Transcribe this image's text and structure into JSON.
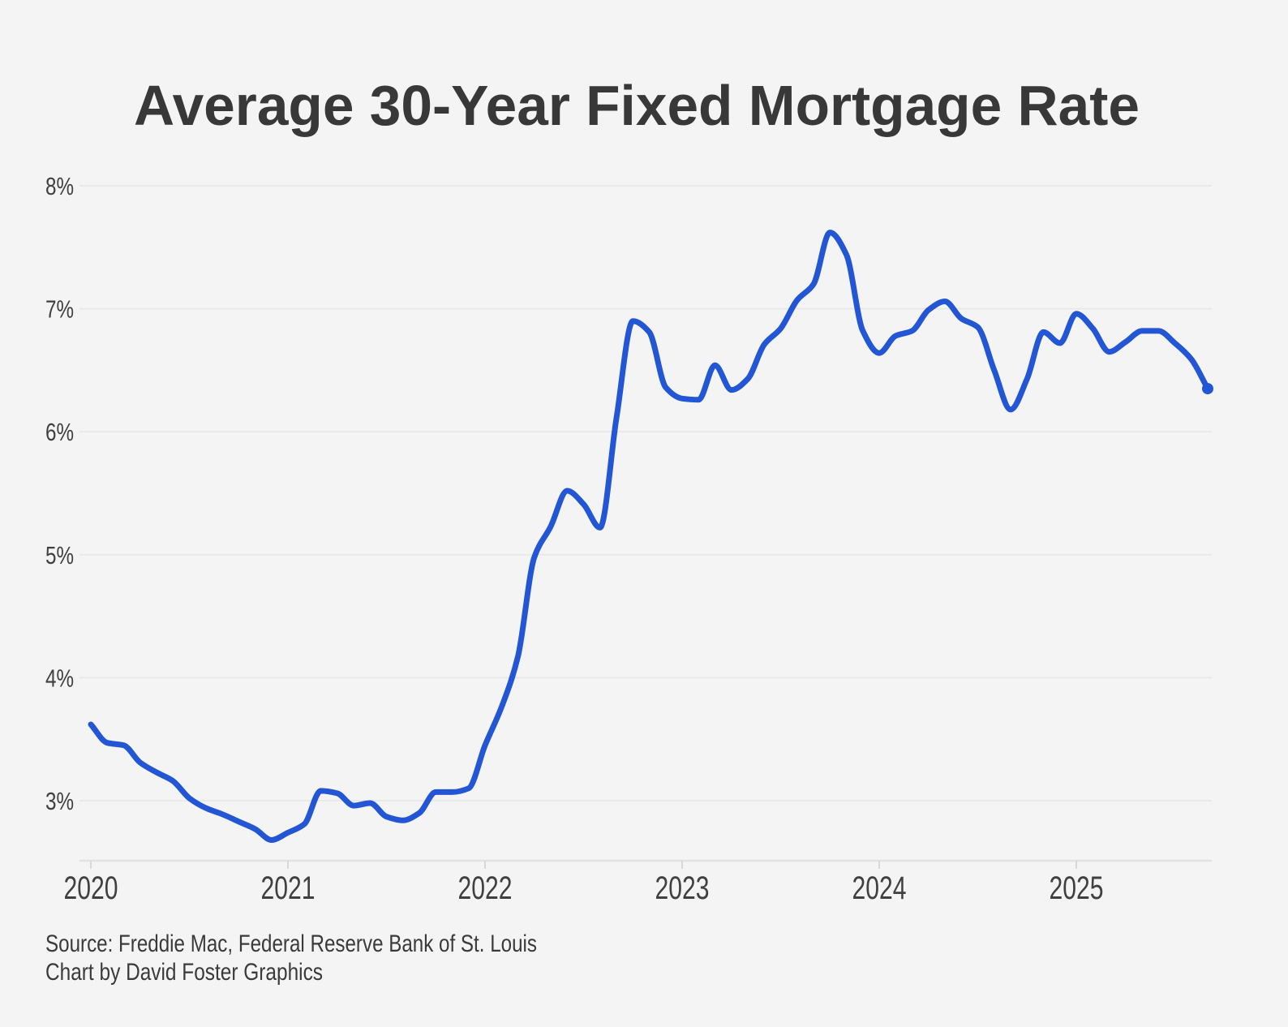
{
  "chart_data": {
    "type": "line",
    "title": "Average 30-Year Fixed Mortgage Rate",
    "source_line1": "Source: Freddie Mac, Federal Reserve Bank of St. Louis",
    "source_line2": "Chart by David Foster Graphics",
    "x_tick_labels": [
      "2020",
      "2021",
      "2022",
      "2023",
      "2024",
      "2025"
    ],
    "y_ticks": [
      8,
      7,
      6,
      5,
      4,
      3
    ],
    "y_tick_labels": [
      "8%",
      "7%",
      "6%",
      "5%",
      "4%",
      "3%"
    ],
    "ylim": [
      2.5,
      8.3
    ],
    "xlabel": "",
    "ylabel": "",
    "grid": "horizontal",
    "legend_position": "none",
    "line_color": "#2256d4",
    "dot_color": "#2256d4",
    "background_color": "#f4f4f4",
    "gridline_color": "#e9e9e9",
    "axis_line_color": "#e2e2e2",
    "tick_color": "#d8d8d8",
    "title_color": "#383838",
    "label_color": "#404040",
    "source_color": "#3a3a3a",
    "series": [
      {
        "name": "Average 30-year fixed mortgage rate (%)",
        "frequency": "monthly",
        "months": [
          "2020-01",
          "2020-02",
          "2020-03",
          "2020-04",
          "2020-05",
          "2020-06",
          "2020-07",
          "2020-08",
          "2020-09",
          "2020-10",
          "2020-11",
          "2020-12",
          "2021-01",
          "2021-02",
          "2021-03",
          "2021-04",
          "2021-05",
          "2021-06",
          "2021-07",
          "2021-08",
          "2021-09",
          "2021-10",
          "2021-11",
          "2021-12",
          "2022-01",
          "2022-02",
          "2022-03",
          "2022-04",
          "2022-05",
          "2022-06",
          "2022-07",
          "2022-08",
          "2022-09",
          "2022-10",
          "2022-11",
          "2022-12",
          "2023-01",
          "2023-02",
          "2023-03",
          "2023-04",
          "2023-05",
          "2023-06",
          "2023-07",
          "2023-08",
          "2023-09",
          "2023-10",
          "2023-11",
          "2023-12",
          "2024-01",
          "2024-02",
          "2024-03",
          "2024-04",
          "2024-05",
          "2024-06",
          "2024-07",
          "2024-08",
          "2024-09",
          "2024-10",
          "2024-11",
          "2024-12",
          "2025-01",
          "2025-02",
          "2025-03",
          "2025-04",
          "2025-05",
          "2025-06",
          "2025-07",
          "2025-08",
          "2025-09"
        ],
        "values": [
          3.62,
          3.47,
          3.45,
          3.31,
          3.23,
          3.16,
          3.02,
          2.94,
          2.89,
          2.83,
          2.77,
          2.68,
          2.74,
          2.81,
          3.08,
          3.06,
          2.96,
          2.98,
          2.87,
          2.84,
          2.9,
          3.07,
          3.07,
          3.1,
          3.45,
          3.76,
          4.17,
          4.98,
          5.23,
          5.52,
          5.41,
          5.22,
          6.11,
          6.9,
          6.81,
          6.36,
          6.27,
          6.26,
          6.54,
          6.34,
          6.43,
          6.71,
          6.84,
          7.07,
          7.2,
          7.62,
          7.44,
          6.82,
          6.64,
          6.78,
          6.82,
          6.99,
          7.06,
          6.92,
          6.85,
          6.5,
          6.18,
          6.43,
          6.81,
          6.72,
          6.96,
          6.84,
          6.65,
          6.73,
          6.82,
          6.82,
          6.72,
          6.59,
          6.35
        ],
        "last_value": 6.35,
        "last_point_marker": true
      }
    ]
  }
}
